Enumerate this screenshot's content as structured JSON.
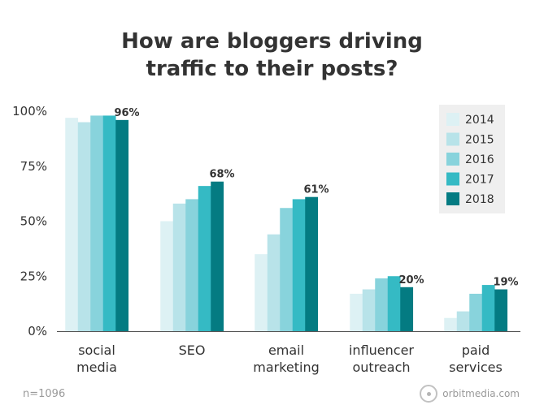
{
  "title": [
    "How are bloggers driving",
    "traffic to their posts?"
  ],
  "footnote": "n=1096",
  "brand": "orbitmedia.com",
  "chart_data": {
    "type": "bar",
    "categories": [
      [
        "social",
        "media"
      ],
      [
        "SEO"
      ],
      [
        "email",
        "marketing"
      ],
      [
        "influencer",
        "outreach"
      ],
      [
        "paid",
        "services"
      ]
    ],
    "series": [
      {
        "name": "2014",
        "color": "#ddf1f4",
        "values": [
          97,
          50,
          35,
          17,
          6
        ]
      },
      {
        "name": "2015",
        "color": "#b8e3e9",
        "values": [
          95,
          58,
          44,
          19,
          9
        ]
      },
      {
        "name": "2016",
        "color": "#88d3dc",
        "values": [
          98,
          60,
          56,
          24,
          17
        ]
      },
      {
        "name": "2017",
        "color": "#35bac4",
        "values": [
          98,
          66,
          60,
          25,
          21
        ]
      },
      {
        "name": "2018",
        "color": "#047b82",
        "values": [
          96,
          68,
          61,
          20,
          19
        ]
      }
    ],
    "data_labels": [
      "96%",
      "68%",
      "61%",
      "20%",
      "19%"
    ],
    "y_ticks": [
      "0%",
      "25%",
      "50%",
      "75%",
      "100%"
    ],
    "ylim": [
      0,
      100
    ],
    "grid": false,
    "legend_position": "top-right"
  }
}
